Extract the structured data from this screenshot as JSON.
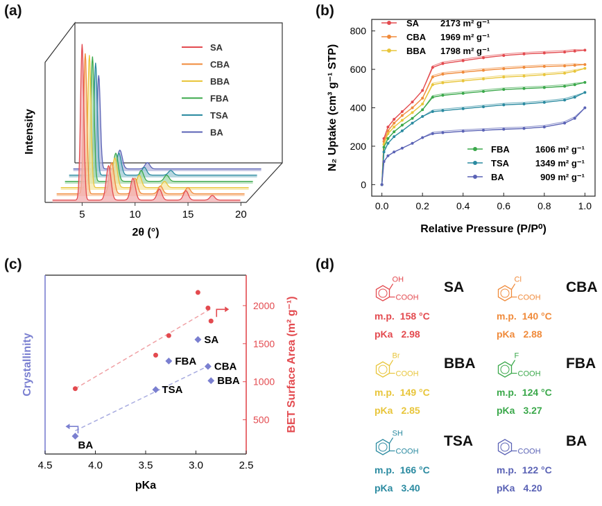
{
  "panels": {
    "a": "(a)",
    "b": "(b)",
    "c": "(c)",
    "d": "(d)"
  },
  "colors": {
    "SA": "#e34a4f",
    "CBA": "#f08a3a",
    "BBA": "#e8c53a",
    "FBA": "#3aa84a",
    "TSA": "#2a8aa0",
    "BA": "#5a62b5"
  },
  "chart_data": [
    {
      "id": "a",
      "type": "line",
      "title": "",
      "xlabel": "2θ (°)",
      "ylabel": "Intensity",
      "xticks": [
        "5",
        "10",
        "15",
        "20"
      ],
      "xlim": [
        1.5,
        20.5
      ],
      "legend": [
        "SA",
        "CBA",
        "BBA",
        "FBA",
        "TSA",
        "BA"
      ],
      "series": [
        {
          "name": "SA",
          "peaks": [
            [
              5.0,
              1.0
            ],
            [
              7.5,
              0.22
            ],
            [
              9.8,
              0.14
            ],
            [
              12.3,
              0.07
            ],
            [
              14.8,
              0.06
            ],
            [
              17.3,
              0.03
            ]
          ]
        },
        {
          "name": "CBA",
          "peaks": [
            [
              4.9,
              0.9
            ],
            [
              7.4,
              0.2
            ],
            [
              9.6,
              0.1
            ],
            [
              12.0,
              0.05
            ],
            [
              14.6,
              0.04
            ]
          ]
        },
        {
          "name": "BBA",
          "peaks": [
            [
              4.9,
              0.85
            ],
            [
              7.3,
              0.19
            ],
            [
              9.6,
              0.08
            ],
            [
              12.0,
              0.04
            ]
          ]
        },
        {
          "name": "FBA",
          "peaks": [
            [
              4.8,
              0.8
            ],
            [
              7.0,
              0.18
            ],
            [
              9.4,
              0.07
            ],
            [
              11.8,
              0.04
            ]
          ]
        },
        {
          "name": "TSA",
          "peaks": [
            [
              4.7,
              0.72
            ],
            [
              6.9,
              0.14
            ],
            [
              9.3,
              0.05
            ],
            [
              11.8,
              0.03
            ]
          ]
        },
        {
          "name": "BA",
          "peaks": [
            [
              4.6,
              0.6
            ],
            [
              6.6,
              0.12
            ],
            [
              9.2,
              0.04
            ]
          ]
        }
      ]
    },
    {
      "id": "b",
      "type": "line",
      "title": "",
      "xlabel": "Relative Pressure (P/P⁰)",
      "ylabel": "N₂ Uptake (cm³ g⁻¹ STP)",
      "xlim": [
        -0.05,
        1.05
      ],
      "ylim": [
        -60,
        860
      ],
      "xticks": [
        "0.0",
        "0.2",
        "0.4",
        "0.6",
        "0.8",
        "1.0"
      ],
      "yticks": [
        "0",
        "200",
        "400",
        "600",
        "800"
      ],
      "legend_top": [
        "SA",
        "CBA",
        "BBA"
      ],
      "legend_bottom": [
        "FBA",
        "TSA",
        "BA"
      ],
      "series": [
        {
          "name": "SA",
          "bet": "2173",
          "unit": "m² g⁻¹",
          "x": [
            0,
            0.01,
            0.03,
            0.06,
            0.1,
            0.15,
            0.2,
            0.25,
            0.3,
            0.4,
            0.5,
            0.6,
            0.7,
            0.8,
            0.9,
            0.95,
            1.0
          ],
          "y": [
            0,
            240,
            300,
            340,
            380,
            430,
            490,
            610,
            630,
            645,
            660,
            672,
            680,
            685,
            690,
            695,
            700
          ]
        },
        {
          "name": "CBA",
          "bet": "1969",
          "unit": "m² g⁻¹",
          "x": [
            0,
            0.01,
            0.03,
            0.06,
            0.1,
            0.15,
            0.2,
            0.25,
            0.3,
            0.4,
            0.5,
            0.6,
            0.7,
            0.8,
            0.9,
            0.95,
            1.0
          ],
          "y": [
            0,
            225,
            280,
            320,
            360,
            400,
            450,
            560,
            575,
            585,
            595,
            603,
            610,
            615,
            618,
            621,
            625
          ]
        },
        {
          "name": "BBA",
          "bet": "1798",
          "unit": "m² g⁻¹",
          "x": [
            0,
            0.01,
            0.03,
            0.06,
            0.1,
            0.15,
            0.2,
            0.25,
            0.3,
            0.4,
            0.5,
            0.6,
            0.7,
            0.8,
            0.9,
            0.95,
            1.0
          ],
          "y": [
            0,
            210,
            265,
            300,
            335,
            375,
            420,
            520,
            530,
            540,
            550,
            560,
            565,
            572,
            580,
            590,
            605
          ]
        },
        {
          "name": "FBA",
          "bet": "1606",
          "unit": "m² g⁻¹",
          "x": [
            0,
            0.01,
            0.03,
            0.06,
            0.1,
            0.15,
            0.2,
            0.25,
            0.3,
            0.4,
            0.5,
            0.6,
            0.7,
            0.8,
            0.9,
            0.95,
            1.0
          ],
          "y": [
            0,
            195,
            240,
            275,
            310,
            345,
            390,
            455,
            465,
            475,
            485,
            495,
            500,
            505,
            512,
            520,
            532
          ]
        },
        {
          "name": "TSA",
          "bet": "1349",
          "unit": "m² g⁻¹",
          "x": [
            0,
            0.01,
            0.03,
            0.06,
            0.1,
            0.15,
            0.2,
            0.25,
            0.3,
            0.4,
            0.5,
            0.6,
            0.7,
            0.8,
            0.9,
            0.95,
            1.0
          ],
          "y": [
            0,
            170,
            215,
            250,
            280,
            320,
            355,
            380,
            385,
            395,
            405,
            415,
            420,
            428,
            440,
            455,
            480
          ]
        },
        {
          "name": "BA",
          "bet": "909",
          "unit": "m² g⁻¹",
          "x": [
            0,
            0.01,
            0.03,
            0.06,
            0.1,
            0.15,
            0.2,
            0.25,
            0.3,
            0.4,
            0.5,
            0.6,
            0.7,
            0.8,
            0.9,
            0.95,
            1.0
          ],
          "y": [
            0,
            120,
            150,
            170,
            190,
            215,
            245,
            265,
            270,
            278,
            283,
            288,
            292,
            300,
            320,
            345,
            400
          ]
        }
      ]
    },
    {
      "id": "c",
      "type": "scatter",
      "title": "",
      "xlabel": "pKa",
      "ylabel_left": "Crystallinity",
      "ylabel_right": "BET Surface Area (m² g⁻¹)",
      "xlim": [
        4.5,
        2.5
      ],
      "ylim_right": [
        50,
        2400
      ],
      "xticks": [
        "4.5",
        "4.0",
        "3.5",
        "3.0",
        "2.5"
      ],
      "yticks_right": [
        "500",
        "1000",
        "1500",
        "2000"
      ],
      "crystallinity": [
        {
          "label": "BA",
          "pka": 4.2,
          "level": 0.1
        },
        {
          "label": "TSA",
          "pka": 3.4,
          "level": 0.36
        },
        {
          "label": "FBA",
          "pka": 3.27,
          "level": 0.52
        },
        {
          "label": "SA",
          "pka": 2.98,
          "level": 0.64
        },
        {
          "label": "CBA",
          "pka": 2.88,
          "level": 0.49
        },
        {
          "label": "BBA",
          "pka": 2.85,
          "level": 0.41
        }
      ],
      "bet": [
        {
          "pka": 4.2,
          "value": 909
        },
        {
          "pka": 3.4,
          "value": 1349
        },
        {
          "pka": 3.27,
          "value": 1606
        },
        {
          "pka": 2.98,
          "value": 2173
        },
        {
          "pka": 2.88,
          "value": 1969
        },
        {
          "pka": 2.85,
          "value": 1798
        }
      ]
    }
  ],
  "compounds": [
    {
      "abbr": "SA",
      "subst": "OH",
      "mp_label": "m.p.",
      "mp": "158 °C",
      "pka_label": "pKa",
      "pka": "2.98"
    },
    {
      "abbr": "CBA",
      "subst": "Cl",
      "mp_label": "m.p.",
      "mp": "140 °C",
      "pka_label": "pKa",
      "pka": "2.88"
    },
    {
      "abbr": "BBA",
      "subst": "Br",
      "mp_label": "m.p.",
      "mp": "149 °C",
      "pka_label": "pKa",
      "pka": "2.85"
    },
    {
      "abbr": "FBA",
      "subst": "F",
      "mp_label": "m.p.",
      "mp": "124 °C",
      "pka_label": "pKa",
      "pka": "3.27"
    },
    {
      "abbr": "TSA",
      "subst": "SH",
      "mp_label": "m.p.",
      "mp": "166 °C",
      "pka_label": "pKa",
      "pka": "3.40"
    },
    {
      "abbr": "BA",
      "subst": "",
      "mp_label": "m.p.",
      "mp": "122 °C",
      "pka_label": "pKa",
      "pka": "4.20"
    }
  ],
  "cooh": "COOH"
}
